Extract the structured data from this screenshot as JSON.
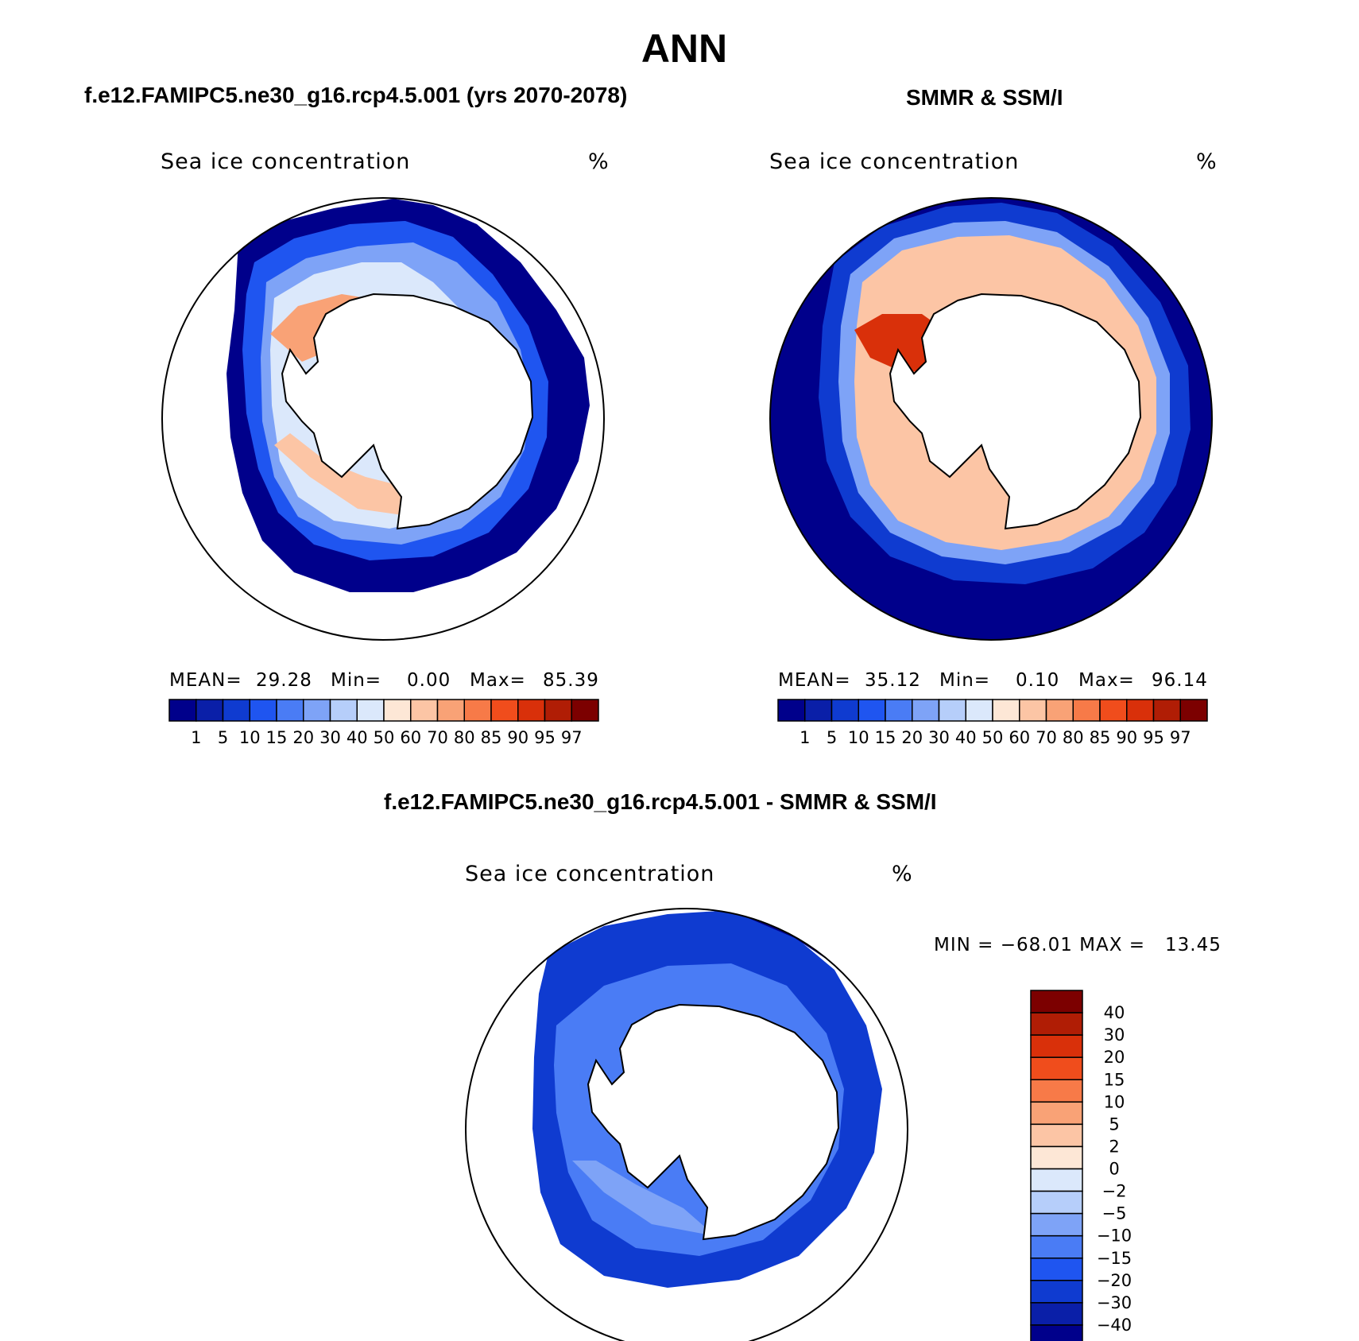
{
  "title": "ANN",
  "panels": [
    {
      "id": "model",
      "heading": "f.e12.FAMIPC5.ne30_g16.rcp4.5.001 (yrs 2070-2078)",
      "variable": "Sea ice concentration",
      "units": "%",
      "mean_label": "MEAN=",
      "mean": "29.28",
      "min_label": "Min=",
      "min": "0.00",
      "max_label": "Max=",
      "max": "85.39"
    },
    {
      "id": "obs",
      "heading": "SMMR & SSM/I",
      "variable": "Sea ice concentration",
      "units": "%",
      "mean_label": "MEAN=",
      "mean": "35.12",
      "min_label": "Min=",
      "min": "0.10",
      "max_label": "Max=",
      "max": "96.14"
    }
  ],
  "colorbar": {
    "labels": [
      "1",
      "5",
      "10",
      "15",
      "20",
      "30",
      "40",
      "50",
      "60",
      "70",
      "80",
      "85",
      "90",
      "95",
      "97"
    ],
    "colors": [
      "#00008b",
      "#0a1fa8",
      "#0f3bd0",
      "#1f55f0",
      "#4a7cf5",
      "#7ea3f7",
      "#b6cefa",
      "#dbe8fb",
      "#fde7d6",
      "#fcc5a5",
      "#f9a276",
      "#f77a48",
      "#f04d1c",
      "#d9300a",
      "#b01d05",
      "#7c0000"
    ]
  },
  "difference": {
    "heading": "f.e12.FAMIPC5.ne30_g16.rcp4.5.001 - SMMR & SSM/I",
    "variable": "Sea ice concentration",
    "units": "%",
    "minmax_text": "MIN = −68.01 MAX =   13.45",
    "colorbar": {
      "labels": [
        "40",
        "30",
        "20",
        "15",
        "10",
        "5",
        "2",
        "0",
        "−2",
        "−5",
        "−10",
        "−15",
        "−20",
        "−30",
        "−40"
      ],
      "colors": [
        "#7c0000",
        "#b01d05",
        "#d9300a",
        "#f04d1c",
        "#f77a48",
        "#f9a276",
        "#fcc5a5",
        "#fde7d6",
        "#dbe8fb",
        "#b6cefa",
        "#7ea3f7",
        "#4a7cf5",
        "#1f55f0",
        "#0f3bd0",
        "#0a1fa8",
        "#00008b"
      ]
    }
  }
}
